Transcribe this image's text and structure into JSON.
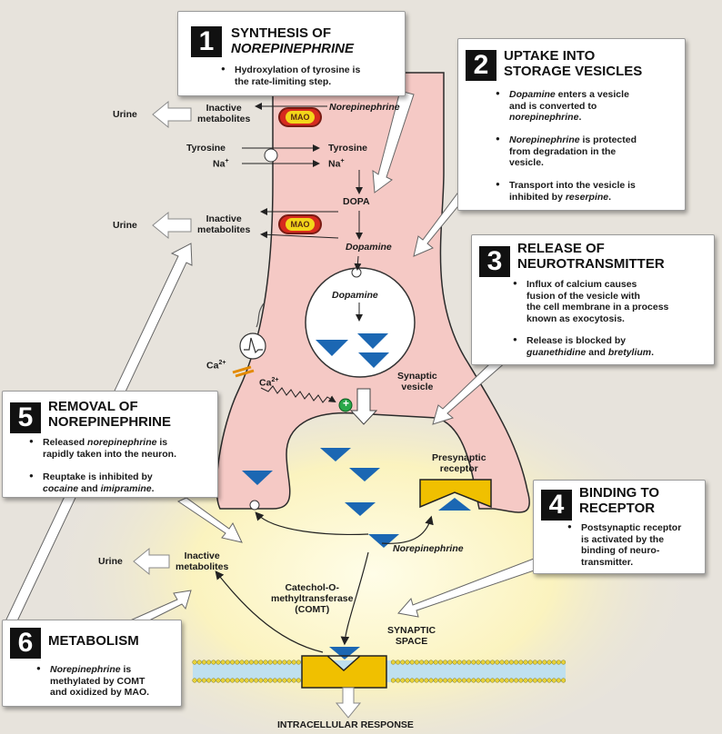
{
  "colors": {
    "neuron": "#f5c9c5",
    "neuron_edge": "#2b2b2b",
    "vesicle": "#ffffff",
    "triangle": "#1b67b3",
    "receptor": "#f0c000",
    "glow": "#fff9c9",
    "mao_outer": "#d62a1e",
    "mao_inner": "#f3d61a"
  },
  "steps": [
    {
      "num": "1",
      "title_line1": "SYNTHESIS OF",
      "title_line2": "NOREPINEPHRINE",
      "bullets": [
        {
          "line1": "Hydroxylation of tyrosine is",
          "line2": "the rate-limiting step."
        }
      ]
    },
    {
      "num": "2",
      "title_line1": "UPTAKE INTO",
      "title_line2": "STORAGE VESICLES",
      "bullets": [
        {
          "line1_it": "Dopamine",
          "line1": " enters a vesicle",
          "line2": "and is converted to",
          "line3_it": "norepinephrine",
          "line3": "."
        },
        {
          "line1_it": "Norepinephrine",
          "line1": " is protected",
          "line2": "from degradation in the",
          "line3": "vesicle."
        },
        {
          "line1": "Transport into the vesicle is",
          "line2": "inhibited by ",
          "line2_it": "reserpine",
          "line2_end": "."
        }
      ]
    },
    {
      "num": "3",
      "title_line1": "RELEASE OF",
      "title_line2": "NEUROTRANSMITTER",
      "bullets": [
        {
          "line1": "Influx of calcium causes",
          "line2": "fusion of the vesicle with",
          "line3": "the cell membrane in a process",
          "line4": "known as exocytosis."
        },
        {
          "line1": "Release is blocked by",
          "line2_it": "guanethidine",
          "line2": " and ",
          "line2_it2": "bretylium",
          "line2_end": "."
        }
      ]
    },
    {
      "num": "4",
      "title_line1": "BINDING TO",
      "title_line2": "RECEPTOR",
      "bullets": [
        {
          "line1": "Postsynaptic receptor",
          "line2": "is activated by the",
          "line3": "binding of neuro-",
          "line4": "transmitter."
        }
      ]
    },
    {
      "num": "5",
      "title_line1": "REMOVAL OF",
      "title_line2": "NOREPINEPHRINE",
      "bullets": [
        {
          "line1": "Released ",
          "line1_it": "norepinephrine",
          "line1_end": " is",
          "line2": "rapidly taken into the neuron."
        },
        {
          "line1": "Reuptake is inhibited by",
          "line2_it": "cocaine",
          "line2": " and ",
          "line2_it2": "imipramine",
          "line2_end": "."
        }
      ]
    },
    {
      "num": "6",
      "title": "METABOLISM",
      "bullets": [
        {
          "line1_it": "Norepinephrine",
          "line1": " is",
          "line2": "methylated by COMT",
          "line3": "and oxidized by MAO."
        }
      ]
    }
  ],
  "labels": {
    "urine": "Urine",
    "inactive": "Inactive",
    "metabolites": "metabolites",
    "norepinephrine": "Norepinephrine",
    "mao": "MAO",
    "tyrosine": "Tyrosine",
    "na": "Na",
    "na_sup": "+",
    "dopa": "DOPA",
    "dopamine": "Dopamine",
    "ca": "Ca",
    "ca_sup": "2+",
    "synaptic": "Synaptic",
    "vesicle": "vesicle",
    "presynaptic": "Presynaptic",
    "receptor": "receptor",
    "comt1": "Catechol-O-",
    "comt2": "methyltransferase",
    "comt3": "(COMT)",
    "synaptic2": "SYNAPTIC",
    "space": "SPACE",
    "intracellular": "INTRACELLULAR RESPONSE",
    "plus": "+"
  }
}
